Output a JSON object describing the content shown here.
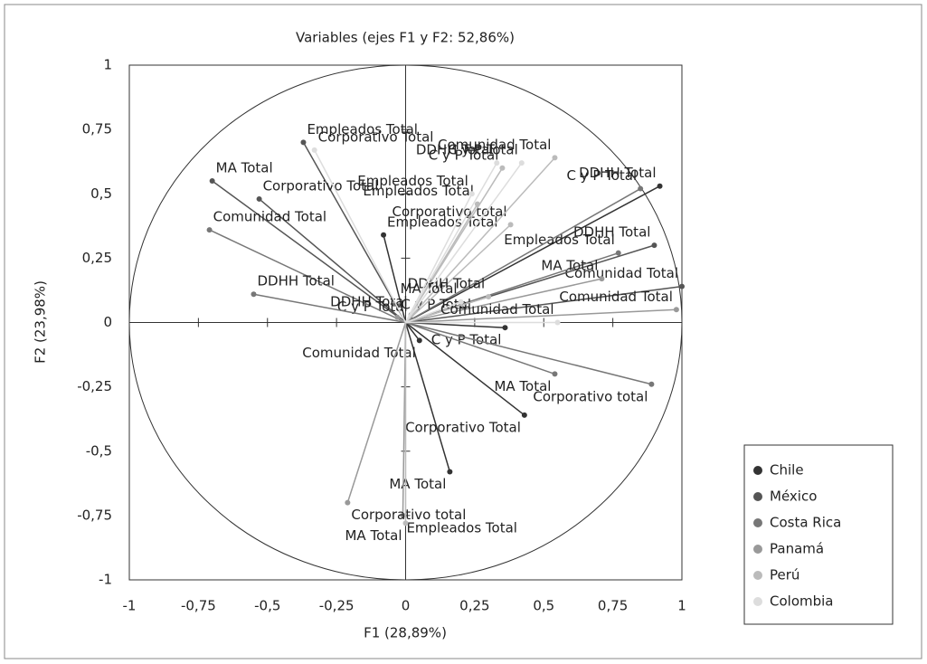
{
  "chart_data": {
    "type": "scatter",
    "title": "Variables (ejes F1 y F2: 52,86%)",
    "x_label": "F1 (28,89%)",
    "y_label": "F2 (23,98%)",
    "xlim": [
      -1,
      1
    ],
    "ylim": [
      -1,
      1
    ],
    "xticks": [
      -1,
      {
        "value": -0.75,
        "label": "-0,75"
      },
      {
        "value": -0.5,
        "label": "-0,5"
      },
      {
        "value": -0.25,
        "label": "-0,25"
      },
      0,
      {
        "value": 0.25,
        "label": "0,25"
      },
      {
        "value": 0.5,
        "label": "0,5"
      },
      {
        "value": 0.75,
        "label": "0,75"
      },
      1
    ],
    "yticks": [
      -1,
      {
        "value": -0.75,
        "label": "-0,75"
      },
      {
        "value": -0.5,
        "label": "-0,5"
      },
      {
        "value": -0.25,
        "label": "-0,25"
      },
      0,
      {
        "value": 0.25,
        "label": "0,25"
      },
      {
        "value": 0.5,
        "label": "0,5"
      },
      {
        "value": 0.75,
        "label": "0,75"
      },
      1
    ],
    "legend": "right",
    "series": [
      {
        "name": "Chile",
        "color": "#333333",
        "labels": [
          "MA Total",
          "Empleados Total",
          "Corporativo Total",
          "Comunidad Total",
          "DDHH Total",
          "C y P Total"
        ],
        "x": [
          0.16,
          -0.08,
          0.43,
          0.05,
          0.92,
          0.36
        ],
        "values": [
          -0.58,
          0.34,
          -0.36,
          -0.07,
          0.53,
          -0.02
        ]
      },
      {
        "name": "México",
        "color": "#555555",
        "labels": [
          "MA Total",
          "Empleados Total",
          "Corporativo Total",
          "Comunidad Total",
          "DDHH Total",
          "C y P Total"
        ],
        "x": [
          -0.7,
          -0.37,
          -0.53,
          1.0,
          0.9,
          0.02
        ],
        "values": [
          0.55,
          0.7,
          0.48,
          0.14,
          0.3,
          0.01
        ]
      },
      {
        "name": "Costa Rica",
        "color": "#777777",
        "labels": [
          "MA Total",
          "Empleados Total",
          "Corporativo total",
          "Comunidad Total",
          "DDHH Total",
          "C y P Total"
        ],
        "x": [
          0.54,
          0.77,
          0.89,
          -0.71,
          -0.55,
          0.85
        ],
        "values": [
          -0.2,
          0.27,
          -0.24,
          0.36,
          0.11,
          0.52
        ]
      },
      {
        "name": "Panamá",
        "color": "#999999",
        "labels": [
          "MA Total",
          "Empleados Total",
          "Corporativo total",
          "Comunidad Total",
          "DDHH Total",
          "C y P Total"
        ],
        "x": [
          0.71,
          -0.01,
          -0.21,
          0.98,
          0.02,
          -0.03
        ],
        "values": [
          0.17,
          -0.75,
          -0.7,
          0.05,
          0.03,
          0.02
        ]
      },
      {
        "name": "Perú",
        "color": "#bbbbbb",
        "labels": [
          "MA Total",
          "Empleados Total",
          "Corporativo total",
          "Comunidad Total",
          "DDHH Total",
          "C y P Total"
        ],
        "x": [
          0.0,
          0.26,
          0.38,
          0.54,
          0.3,
          0.35
        ],
        "values": [
          -0.78,
          0.46,
          0.38,
          0.64,
          0.1,
          0.6
        ]
      },
      {
        "name": "Colombia",
        "color": "#dddddd",
        "labels": [
          "MA Total",
          "Empleados Total",
          "Corporativo Total",
          "Comunidad Total",
          "DDHH Total",
          "C y P Total"
        ],
        "x": [
          0.2,
          0.24,
          -0.33,
          0.55,
          0.33,
          0.42
        ],
        "values": [
          0.08,
          0.5,
          0.67,
          0.0,
          0.62,
          0.62
        ]
      }
    ]
  }
}
